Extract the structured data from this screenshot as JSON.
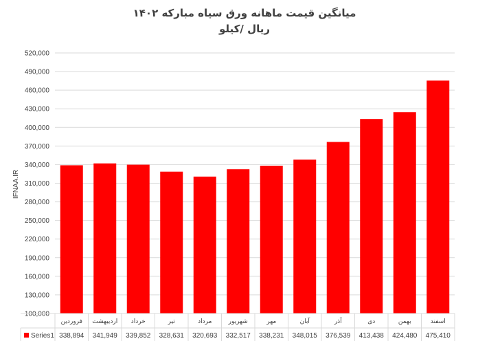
{
  "chart_data": {
    "type": "bar",
    "title": "میانگین قیمت ماهانه ورق سیاه مبارکه ۱۴۰۲",
    "subtitle": "ریال /کیلو",
    "ylabel": "IFNAA.IR",
    "xlabel": "",
    "categories": [
      "فروردین",
      "اردیبهشت",
      "خرداد",
      "تیر",
      "مرداد",
      "شهریور",
      "مهر",
      "آبان",
      "آذر",
      "دی",
      "بهمن",
      "اسفند"
    ],
    "series": [
      {
        "name": "Series1",
        "color": "#ff0000",
        "values": [
          338894,
          341949,
          339852,
          328631,
          320693,
          332517,
          338231,
          348015,
          376539,
          413438,
          424480,
          475410
        ],
        "labels": [
          "338,894",
          "341,949",
          "339,852",
          "328,631",
          "320,693",
          "332,517",
          "338,231",
          "348,015",
          "376,539",
          "413,438",
          "424,480",
          "475,410"
        ]
      }
    ],
    "ylim": [
      100000,
      520000
    ],
    "yticks": [
      "100,000",
      "130,000",
      "160,000",
      "190,000",
      "220,000",
      "250,000",
      "280,000",
      "310,000",
      "340,000",
      "370,000",
      "400,000",
      "430,000",
      "460,000",
      "490,000",
      "520,000"
    ],
    "grid": true,
    "legend": "data-table-left",
    "data_table": true
  }
}
